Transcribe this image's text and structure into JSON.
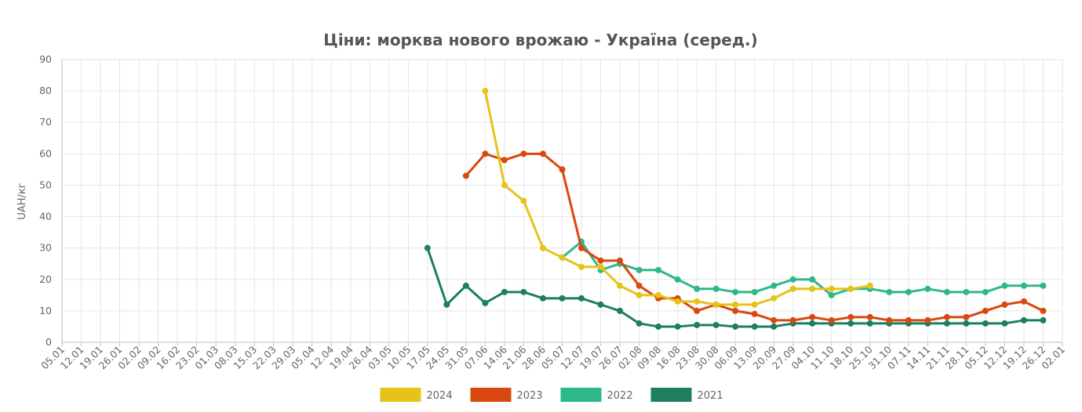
{
  "chart_data": {
    "type": "line",
    "title": "Ціни: морква нового врожаю - Україна (серед.)",
    "xlabel": "",
    "ylabel": "UAH/кг",
    "ylim": [
      0,
      90
    ],
    "yticks": [
      0,
      10,
      20,
      30,
      40,
      50,
      60,
      70,
      80,
      90
    ],
    "grid": true,
    "legend_position": "bottom",
    "categories": [
      "05.01",
      "12.01",
      "19.01",
      "26.01",
      "02.02",
      "09.02",
      "16.02",
      "23.02",
      "01.03",
      "08.03",
      "15.03",
      "22.03",
      "29.03",
      "05.04",
      "12.04",
      "19.04",
      "26.04",
      "03.05",
      "10.05",
      "17.05",
      "24.05",
      "31.05",
      "07.06",
      "14.06",
      "21.06",
      "28.06",
      "05.07",
      "12.07",
      "19.07",
      "26.07",
      "02.08",
      "09.08",
      "16.08",
      "23.08",
      "30.08",
      "06.09",
      "13.09",
      "20.09",
      "27.09",
      "04.10",
      "11.10",
      "18.10",
      "25.10",
      "31.10",
      "07.11",
      "14.11",
      "21.11",
      "28.11",
      "05.12",
      "12.12",
      "19.12",
      "26.12",
      "02.01"
    ],
    "series": [
      {
        "name": "2024",
        "color": "#E5C31B",
        "values": [
          null,
          null,
          null,
          null,
          null,
          null,
          null,
          null,
          null,
          null,
          null,
          null,
          null,
          null,
          null,
          null,
          null,
          null,
          null,
          null,
          null,
          null,
          80,
          50,
          45,
          30,
          27,
          24,
          24,
          18,
          15,
          15,
          13,
          13,
          12,
          12,
          12,
          14,
          17,
          17,
          17,
          17,
          18,
          null,
          null,
          null,
          null,
          null,
          null,
          null,
          null,
          null,
          null
        ]
      },
      {
        "name": "2023",
        "color": "#D9480F",
        "values": [
          null,
          null,
          null,
          null,
          null,
          null,
          null,
          null,
          null,
          null,
          null,
          null,
          null,
          null,
          null,
          null,
          null,
          null,
          null,
          null,
          null,
          53,
          60,
          58,
          60,
          60,
          55,
          30,
          26,
          26,
          18,
          14,
          14,
          10,
          12,
          10,
          9,
          7,
          7,
          8,
          7,
          8,
          8,
          7,
          7,
          7,
          8,
          8,
          10,
          12,
          13,
          10,
          null
        ]
      },
      {
        "name": "2022",
        "color": "#2DB88A",
        "values": [
          null,
          null,
          null,
          null,
          null,
          null,
          null,
          null,
          null,
          null,
          null,
          null,
          null,
          null,
          null,
          null,
          null,
          null,
          null,
          null,
          null,
          null,
          null,
          null,
          null,
          null,
          27,
          32,
          23,
          25,
          23,
          23,
          20,
          17,
          17,
          16,
          16,
          18,
          20,
          20,
          15,
          17,
          17,
          16,
          16,
          17,
          16,
          16,
          16,
          18,
          18,
          18,
          null
        ]
      },
      {
        "name": "2021",
        "color": "#1E7F5C",
        "values": [
          null,
          null,
          null,
          null,
          null,
          null,
          null,
          null,
          null,
          null,
          null,
          null,
          null,
          null,
          null,
          null,
          null,
          null,
          null,
          30,
          12,
          18,
          12.5,
          16,
          16,
          14,
          14,
          14,
          12,
          10,
          6,
          5,
          5,
          5.5,
          5.5,
          5,
          5,
          5,
          6,
          6,
          6,
          6,
          6,
          6,
          6,
          6,
          6,
          6,
          6,
          6,
          7,
          7,
          null
        ]
      }
    ]
  }
}
